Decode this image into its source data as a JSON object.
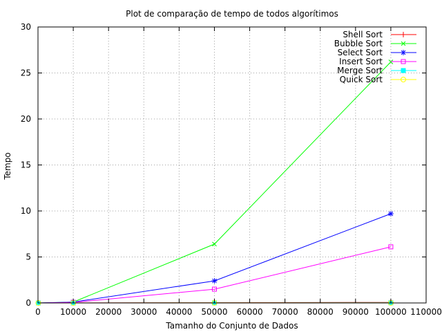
{
  "chart_data": {
    "type": "line",
    "title": "Plot de comparação de tempo de todos algorítimos",
    "xlabel": "Tamanho do Conjunto de Dados",
    "ylabel": "Tempo",
    "xlim": [
      0,
      110000
    ],
    "ylim": [
      0,
      30
    ],
    "xticks": [
      0,
      10000,
      20000,
      30000,
      40000,
      50000,
      60000,
      70000,
      80000,
      90000,
      100000,
      110000
    ],
    "yticks": [
      0,
      5,
      10,
      15,
      20,
      25,
      30
    ],
    "grid": true,
    "legend_position": "top-right",
    "x": [
      100,
      10000,
      50000,
      100000
    ],
    "series": [
      {
        "name": "Shell Sort",
        "color": "#ff0000",
        "marker": "plus",
        "values": [
          0,
          0.01,
          0.03,
          0.06
        ]
      },
      {
        "name": "Bubble Sort",
        "color": "#00ff00",
        "marker": "cross",
        "values": [
          0,
          0.1,
          6.4,
          26.2
        ]
      },
      {
        "name": "Select Sort",
        "color": "#0000ff",
        "marker": "star",
        "values": [
          0,
          0.1,
          2.4,
          9.7
        ]
      },
      {
        "name": "Insert Sort",
        "color": "#ff00ff",
        "marker": "square-open",
        "values": [
          0,
          0.06,
          1.5,
          6.1
        ]
      },
      {
        "name": "Merge Sort",
        "color": "#00ffff",
        "marker": "square-filled",
        "values": [
          0,
          0,
          0.01,
          0.02
        ]
      },
      {
        "name": "Quick Sort",
        "color": "#ffff00",
        "marker": "circle-open",
        "values": [
          0,
          0,
          0.01,
          0.01
        ]
      }
    ]
  }
}
